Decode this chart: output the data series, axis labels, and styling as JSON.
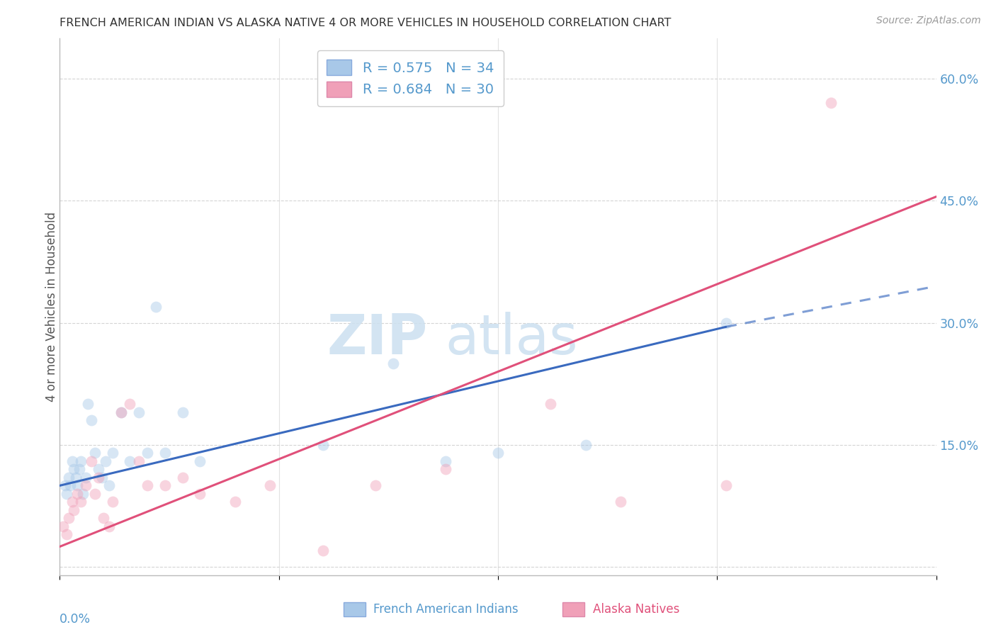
{
  "title": "FRENCH AMERICAN INDIAN VS ALASKA NATIVE 4 OR MORE VEHICLES IN HOUSEHOLD CORRELATION CHART",
  "source": "Source: ZipAtlas.com",
  "ylabel": "4 or more Vehicles in Household",
  "ytick_values": [
    0.0,
    0.15,
    0.3,
    0.45,
    0.6
  ],
  "xlim": [
    0.0,
    0.5
  ],
  "ylim": [
    -0.01,
    0.65
  ],
  "legend_blue_r": "0.575",
  "legend_blue_n": "34",
  "legend_pink_r": "0.684",
  "legend_pink_n": "30",
  "blue_scatter_x": [
    0.003,
    0.004,
    0.005,
    0.006,
    0.007,
    0.008,
    0.009,
    0.01,
    0.011,
    0.012,
    0.013,
    0.015,
    0.016,
    0.018,
    0.02,
    0.022,
    0.024,
    0.026,
    0.028,
    0.03,
    0.035,
    0.04,
    0.045,
    0.05,
    0.055,
    0.06,
    0.07,
    0.08,
    0.15,
    0.19,
    0.22,
    0.25,
    0.3,
    0.38
  ],
  "blue_scatter_y": [
    0.1,
    0.09,
    0.11,
    0.1,
    0.13,
    0.12,
    0.11,
    0.1,
    0.12,
    0.13,
    0.09,
    0.11,
    0.2,
    0.18,
    0.14,
    0.12,
    0.11,
    0.13,
    0.1,
    0.14,
    0.19,
    0.13,
    0.19,
    0.14,
    0.32,
    0.14,
    0.19,
    0.13,
    0.15,
    0.25,
    0.13,
    0.14,
    0.15,
    0.3
  ],
  "pink_scatter_x": [
    0.002,
    0.004,
    0.005,
    0.007,
    0.008,
    0.01,
    0.012,
    0.015,
    0.018,
    0.02,
    0.022,
    0.025,
    0.028,
    0.03,
    0.035,
    0.04,
    0.045,
    0.05,
    0.06,
    0.07,
    0.08,
    0.1,
    0.12,
    0.15,
    0.18,
    0.22,
    0.28,
    0.32,
    0.38,
    0.44
  ],
  "pink_scatter_y": [
    0.05,
    0.04,
    0.06,
    0.08,
    0.07,
    0.09,
    0.08,
    0.1,
    0.13,
    0.09,
    0.11,
    0.06,
    0.05,
    0.08,
    0.19,
    0.2,
    0.13,
    0.1,
    0.1,
    0.11,
    0.09,
    0.08,
    0.1,
    0.02,
    0.1,
    0.12,
    0.2,
    0.08,
    0.1,
    0.57
  ],
  "blue_color": "#a8c8e8",
  "pink_color": "#f0a0b8",
  "blue_line_color": "#3a6abf",
  "pink_line_color": "#e0507a",
  "grid_color": "#d0d0d0",
  "background_color": "#ffffff",
  "title_color": "#333333",
  "axis_label_color": "#5599cc",
  "marker_size": 130,
  "marker_alpha": 0.45,
  "line_width": 2.2,
  "blue_line_x_start": 0.0,
  "blue_line_x_solid_end": 0.38,
  "blue_line_x_end": 0.5,
  "blue_line_y_start": 0.1,
  "blue_line_y_solid_end": 0.295,
  "blue_line_y_end": 0.345,
  "pink_line_x_start": 0.0,
  "pink_line_x_end": 0.5,
  "pink_line_y_start": 0.025,
  "pink_line_y_end": 0.455
}
